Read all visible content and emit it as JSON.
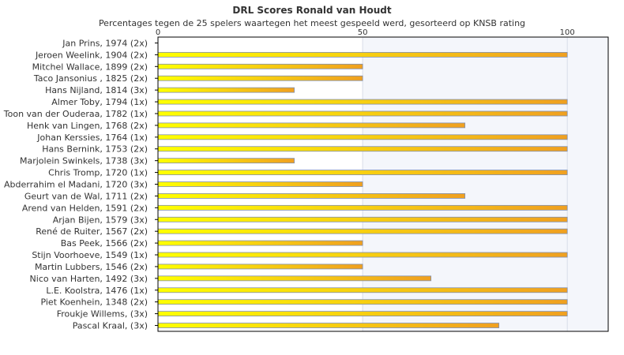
{
  "chart_data": {
    "type": "bar",
    "orientation": "horizontal",
    "title": "DRL Scores Ronald van Houdt",
    "subtitle": "Percentages tegen de 25 spelers waartegen het meest gespeeld werd, gesorteerd op KNSB rating",
    "xlim": [
      0,
      110
    ],
    "xticks": [
      "0",
      "50",
      "100"
    ],
    "categories": [
      "Jan Prins, 1974 (2x)",
      "Jeroen Weelink, 1904 (2x)",
      "Mitchel Wallace, 1899 (2x)",
      "Taco Jansonius , 1825 (2x)",
      "Hans Nijland, 1814 (3x)",
      "Almer Toby, 1794 (1x)",
      "Toon van der Ouderaa, 1782 (1x)",
      "Henk van Lingen, 1768 (2x)",
      "Johan Kerssies, 1764 (1x)",
      "Hans Bernink, 1753 (2x)",
      "Marjolein Swinkels, 1738 (3x)",
      "Chris Tromp, 1720 (1x)",
      "Abderrahim el Madani, 1720 (3x)",
      "Geurt van de Wal, 1711 (2x)",
      "Arend van Helden, 1591 (2x)",
      "Arjan Bijen, 1579 (3x)",
      "René de Ruiter, 1567 (2x)",
      "Bas Peek, 1566 (2x)",
      "Stijn Voorhoeve, 1549 (1x)",
      "Martin Lubbers, 1546 (2x)",
      "Nico van Harten, 1492 (3x)",
      "L.E. Koolstra, 1476 (1x)",
      "Piet Koenhein, 1348 (2x)",
      "Froukje Willems,  (3x)",
      "Pascal Kraal,  (3x)"
    ],
    "values": [
      0,
      100,
      50,
      50,
      33.3,
      100,
      100,
      75,
      100,
      100,
      33.3,
      100,
      50,
      75,
      100,
      100,
      100,
      50,
      100,
      50,
      66.7,
      100,
      100,
      100,
      83.3
    ],
    "grid": true,
    "legend": "none",
    "colors": {
      "bar_start": "#ffff00",
      "bar_end": "#f0a020",
      "bar_border": "#7f8fb0",
      "plot_band": "#f4f6fb",
      "axis": "#000000",
      "grid": "#d8dde8"
    }
  }
}
